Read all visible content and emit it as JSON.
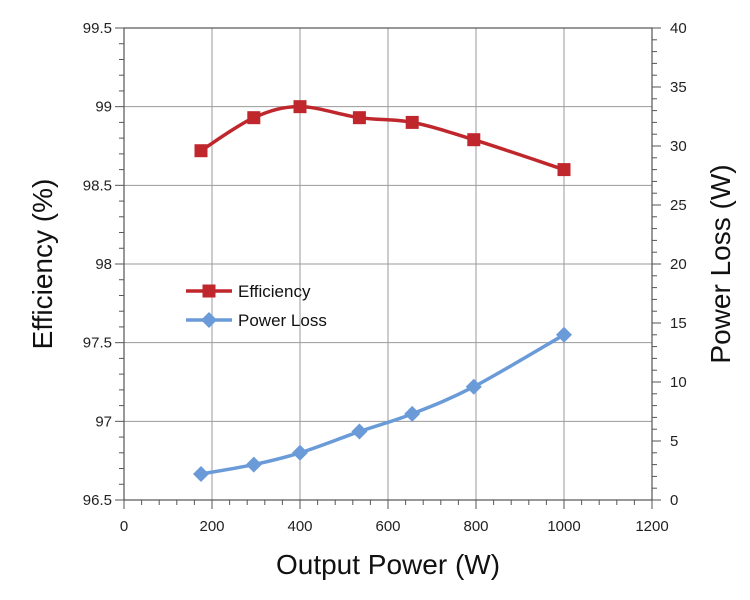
{
  "chart_data": {
    "type": "line",
    "title": "",
    "xlabel": "Output Power (W)",
    "ylabel": "Efficiency (%)",
    "y2label": "Power Loss (W)",
    "xlim": [
      0,
      1200
    ],
    "ylim": [
      96.5,
      99.5
    ],
    "y2lim": [
      0,
      40
    ],
    "grid": true,
    "legend_position": "center-left",
    "x_ticks": [
      "0",
      "200",
      "400",
      "600",
      "800",
      "1000",
      "1200"
    ],
    "y_ticks": [
      "96.5",
      "97",
      "97.5",
      "98",
      "98.5",
      "99",
      "99.5"
    ],
    "y2_ticks": [
      "0",
      "5",
      "10",
      "15",
      "20",
      "25",
      "30",
      "35",
      "40"
    ],
    "series": [
      {
        "name": "Efficiency",
        "axis": "left",
        "marker": "square",
        "color": "#c0272d",
        "x": [
          175,
          295,
          400,
          535,
          655,
          795,
          1000
        ],
        "values": [
          98.72,
          98.93,
          99.0,
          98.93,
          98.9,
          98.79,
          98.6
        ]
      },
      {
        "name": "Power Loss",
        "axis": "right",
        "marker": "diamond",
        "color": "#6a9bd8",
        "x": [
          175,
          295,
          400,
          535,
          655,
          795,
          1000
        ],
        "values": [
          2.2,
          3.0,
          4.0,
          5.8,
          7.3,
          9.6,
          14.0
        ]
      }
    ]
  }
}
